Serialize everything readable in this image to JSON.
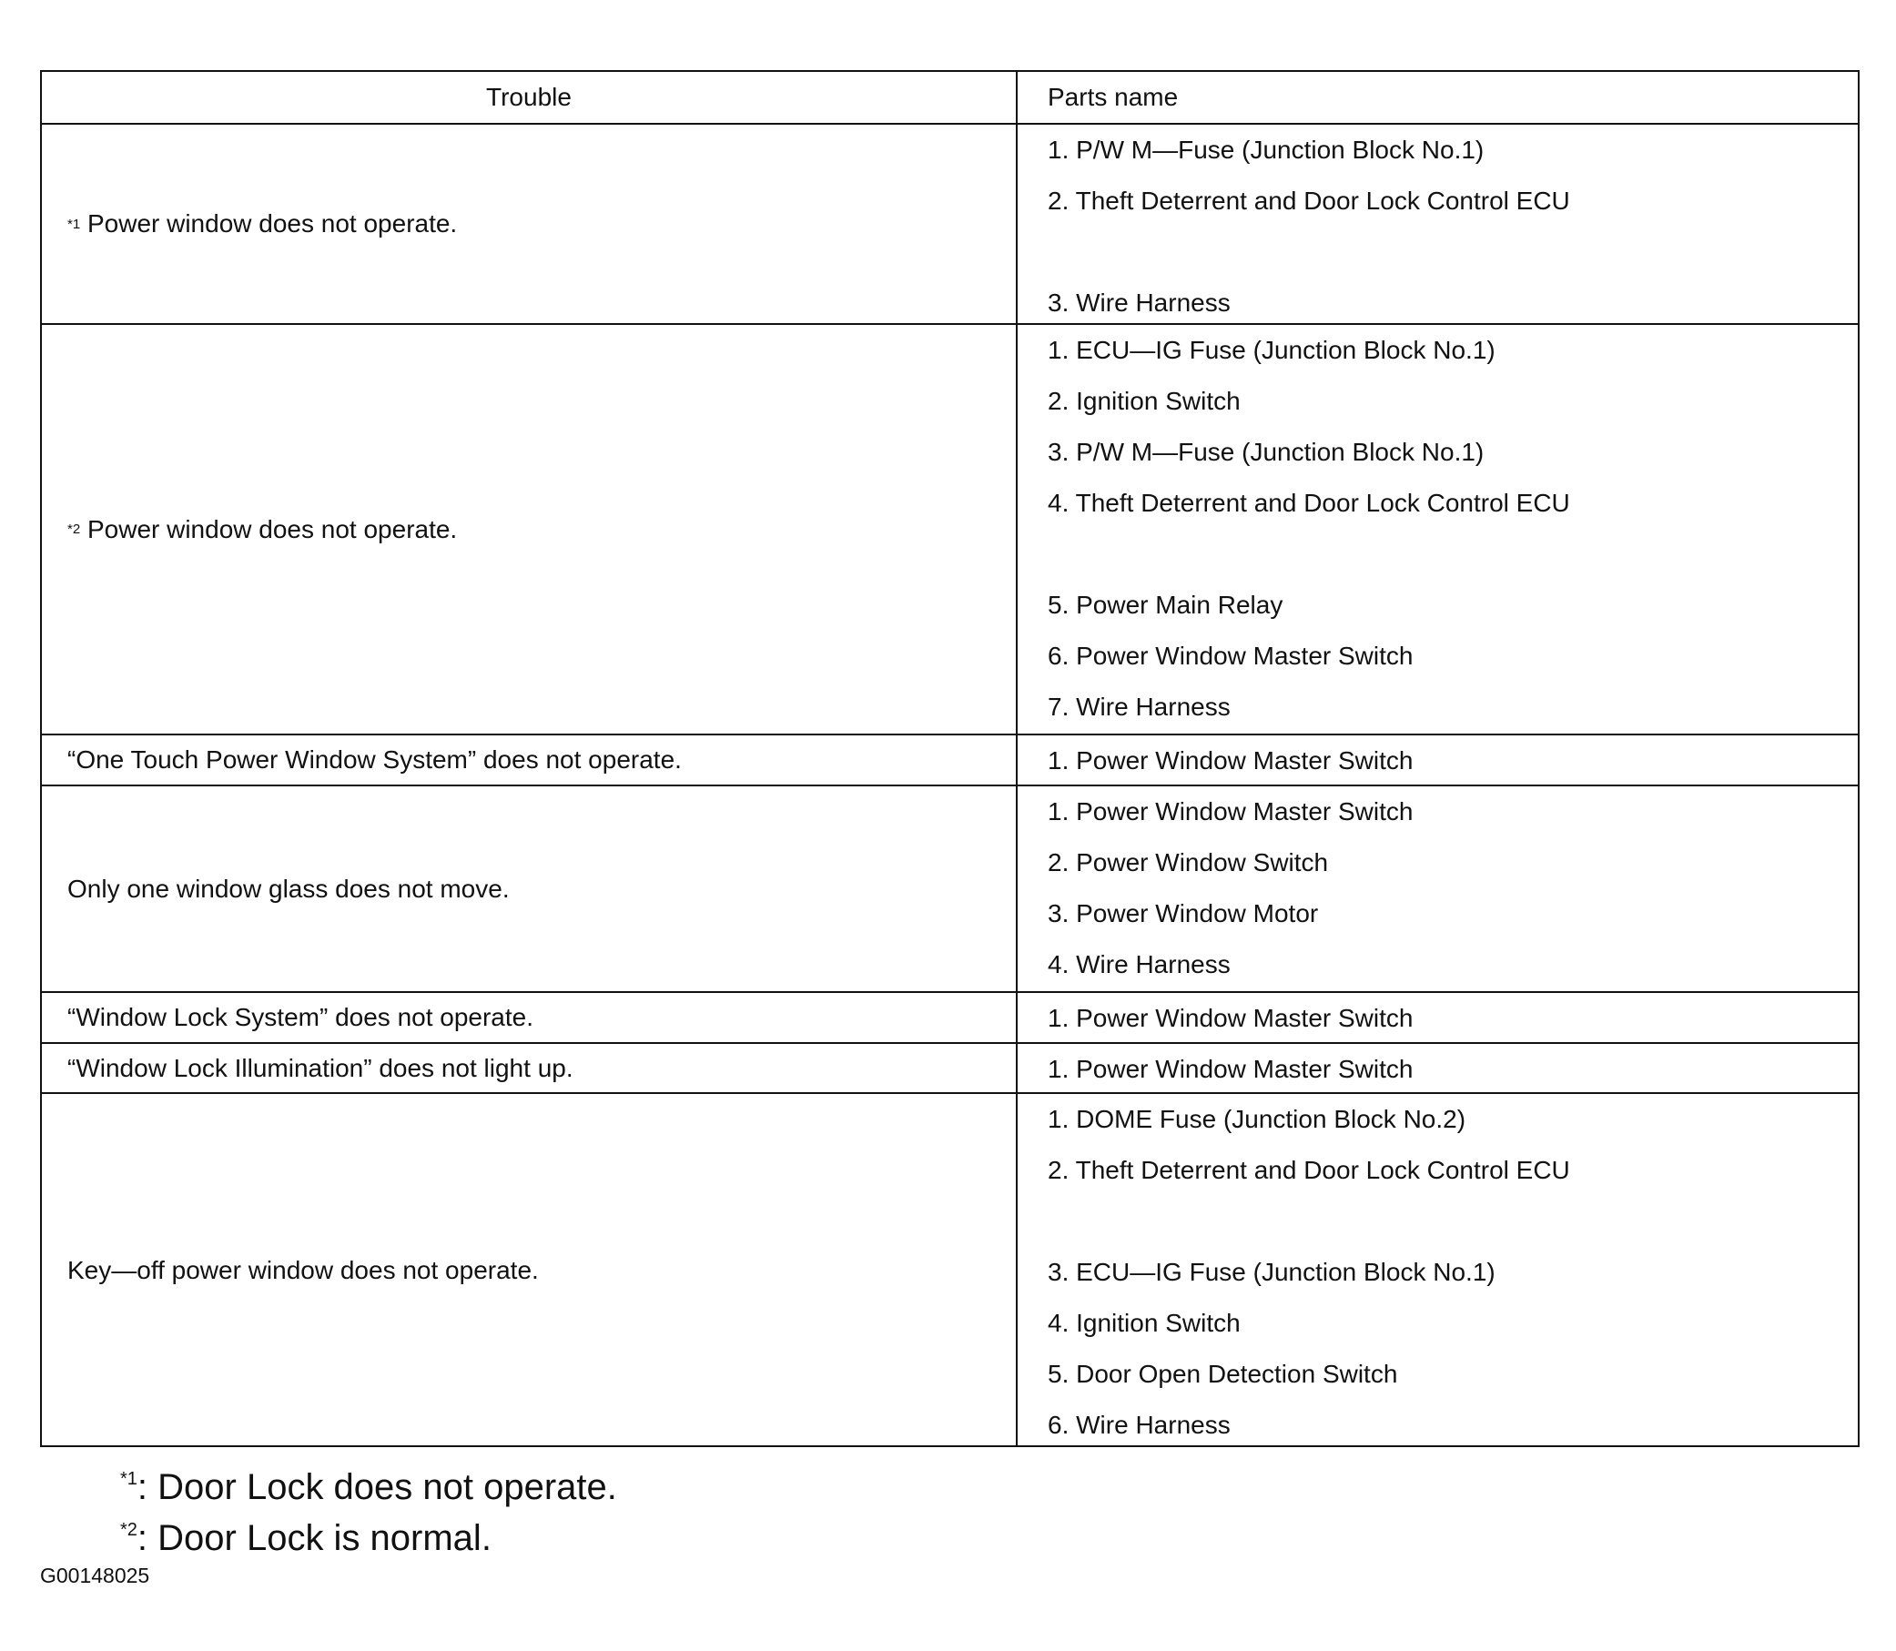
{
  "header": {
    "trouble": "Trouble",
    "parts": "Parts name"
  },
  "rows": [
    {
      "mark": "*1",
      "trouble": "Power window does not operate.",
      "parts": [
        "1. P/W M—Fuse (Junction Block No.1)",
        "2. Theft Deterrent and Door Lock Control ECU",
        "3. Wire Harness"
      ]
    },
    {
      "mark": "*2",
      "trouble": "Power window does not operate.",
      "parts": [
        "1. ECU—IG Fuse (Junction Block No.1)",
        "2. Ignition Switch",
        "3. P/W M—Fuse (Junction Block No.1)",
        "4. Theft Deterrent and Door Lock Control ECU",
        "5. Power Main Relay",
        "6. Power Window Master Switch",
        "7. Wire Harness"
      ]
    },
    {
      "trouble": "“One Touch Power Window System” does not operate.",
      "parts": [
        "1. Power Window Master Switch"
      ]
    },
    {
      "trouble": "Only one window glass does not move.",
      "parts": [
        "1. Power Window Master Switch",
        "2. Power Window Switch",
        "3. Power Window Motor",
        "4. Wire Harness"
      ]
    },
    {
      "trouble": "“Window Lock System” does not operate.",
      "parts": [
        "1. Power Window Master Switch"
      ]
    },
    {
      "trouble": "“Window Lock Illumination” does not light up.",
      "parts": [
        "1. Power Window Master Switch"
      ]
    },
    {
      "trouble": "Key—off power window does not operate.",
      "parts": [
        "1. DOME Fuse (Junction Block No.2)",
        "2. Theft Deterrent and Door Lock Control ECU",
        "3. ECU—IG Fuse (Junction Block No.1)",
        "4. Ignition Switch",
        "5. Door Open Detection Switch",
        "6. Wire Harness"
      ]
    }
  ],
  "footnotes": [
    {
      "mark": "*1",
      "text": ": Door Lock does not operate."
    },
    {
      "mark": "*2",
      "text": ": Door Lock is normal."
    }
  ],
  "figure_code": "G00148025"
}
